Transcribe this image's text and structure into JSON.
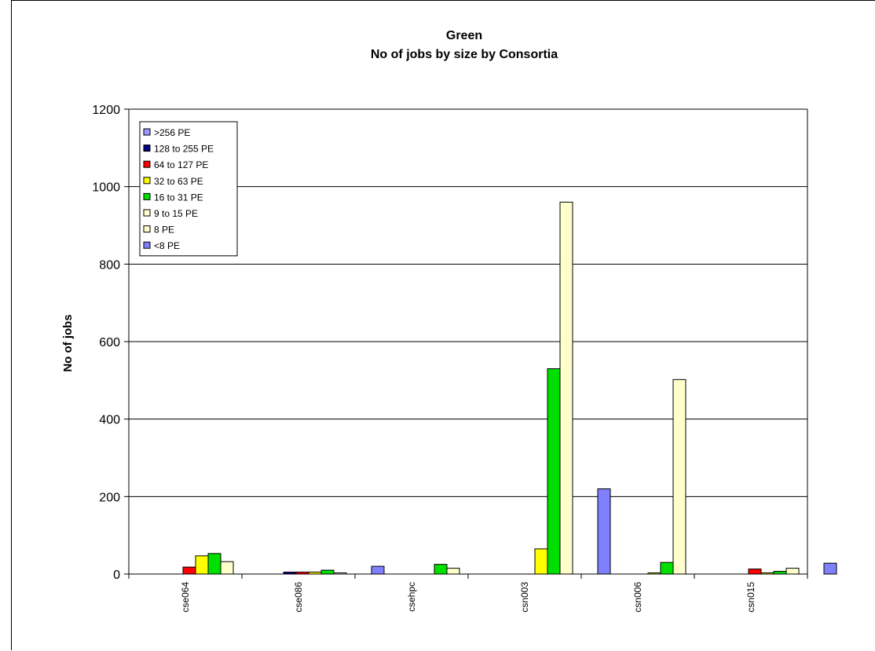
{
  "chart_data": {
    "type": "bar",
    "title": "Green",
    "subtitle": "No of jobs by size by Consortia",
    "xlabel": "",
    "ylabel": "No of jobs",
    "ylim": [
      0,
      1200
    ],
    "yticks": [
      "0",
      "200",
      "400",
      "600",
      "800",
      "1000",
      "1200"
    ],
    "grid": true,
    "legend_position": "top-left",
    "categories": [
      "cse064",
      "cse086",
      "csehpc",
      "csn003",
      "csn006",
      "csn015"
    ],
    "series": [
      {
        "name": "<8 PE",
        "color": "#8080ff",
        "values": [
          0,
          20,
          0,
          220,
          0,
          28
        ]
      },
      {
        "name": "8 PE",
        "color": "#ffffcc",
        "values": [
          0,
          0,
          0,
          0,
          0,
          0
        ]
      },
      {
        "name": "9 to 15 PE",
        "color": "#ffffcc",
        "values": [
          32,
          3,
          15,
          960,
          502,
          15
        ]
      },
      {
        "name": "16 to 31 PE",
        "color": "#00e000",
        "values": [
          53,
          10,
          25,
          530,
          30,
          7
        ]
      },
      {
        "name": "32 to 63 PE",
        "color": "#ffff00",
        "values": [
          47,
          5,
          0,
          65,
          3,
          3
        ]
      },
      {
        "name": "64 to 127 PE",
        "color": "#ff0000",
        "values": [
          18,
          5,
          0,
          0,
          0,
          13
        ]
      },
      {
        "name": "128 to 255 PE",
        "color": "#000080",
        "values": [
          0,
          5,
          0,
          0,
          0,
          0
        ]
      },
      {
        "name": ">256 PE",
        "color": "#9999ff",
        "values": [
          0,
          0,
          0,
          0,
          0,
          0
        ]
      }
    ],
    "legend_order": [
      ">256 PE",
      "128 to 255 PE",
      "64 to 127 PE",
      "32 to 63 PE",
      "16 to 31 PE",
      "9 to 15 PE",
      "8 PE",
      "<8 PE"
    ]
  }
}
